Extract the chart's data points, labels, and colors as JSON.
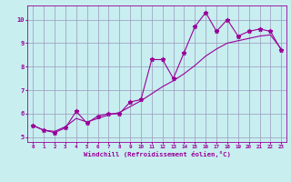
{
  "xlabel": "Windchill (Refroidissement éolien,°C)",
  "bg_color": "#c8eef0",
  "plot_bg_color": "#c8eef0",
  "line_color": "#990099",
  "grid_color": "#9999bb",
  "axis_bar_color": "#660066",
  "xlim": [
    -0.5,
    23.5
  ],
  "ylim": [
    4.8,
    10.6
  ],
  "yticks": [
    5,
    6,
    7,
    8,
    9,
    10
  ],
  "xticks": [
    0,
    1,
    2,
    3,
    4,
    5,
    6,
    7,
    8,
    9,
    10,
    11,
    12,
    13,
    14,
    15,
    16,
    17,
    18,
    19,
    20,
    21,
    22,
    23
  ],
  "hours": [
    0,
    1,
    2,
    3,
    4,
    5,
    6,
    7,
    8,
    9,
    10,
    11,
    12,
    13,
    14,
    15,
    16,
    17,
    18,
    19,
    20,
    21,
    22,
    23
  ],
  "windchill": [
    5.5,
    5.3,
    5.2,
    5.4,
    6.1,
    5.6,
    5.9,
    6.0,
    6.0,
    6.5,
    6.6,
    8.3,
    8.3,
    7.5,
    8.6,
    9.7,
    10.3,
    9.5,
    10.0,
    9.3,
    9.5,
    9.6,
    9.5,
    8.7
  ],
  "smooth": [
    5.5,
    5.3,
    5.25,
    5.45,
    5.8,
    5.65,
    5.8,
    5.95,
    6.05,
    6.3,
    6.55,
    6.85,
    7.15,
    7.4,
    7.7,
    8.05,
    8.45,
    8.75,
    9.0,
    9.1,
    9.2,
    9.3,
    9.35,
    8.75
  ]
}
